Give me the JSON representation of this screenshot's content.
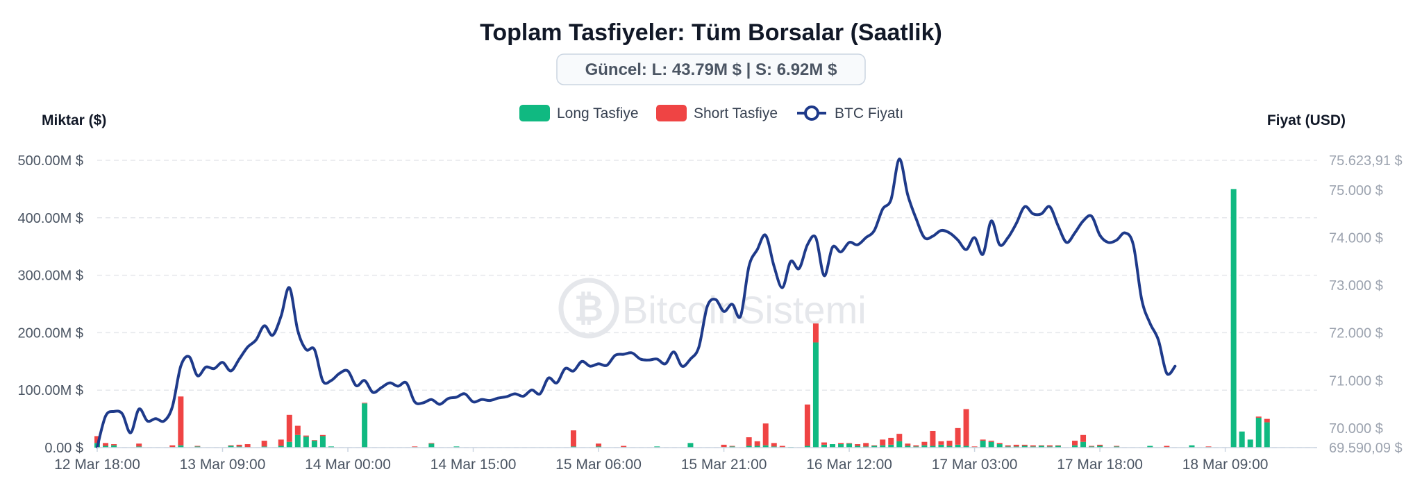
{
  "chart_data": {
    "type": "bar",
    "title": "Toplam Tasfiyeler: Tüm Borsalar (Saatlik)",
    "current_label": "Güncel: L: 43.79M $ | S: 6.92M $",
    "ylabel_left": "Miktar ($)",
    "ylabel_right": "Fiyat (USD)",
    "watermark": "BitcoinSistemi",
    "legend": [
      "Long Tasfiye",
      "Short Tasfiye",
      "BTC Fiyatı"
    ],
    "legend_position": "top-center",
    "grid": true,
    "colors": {
      "long": "#10b981",
      "short": "#ef4444",
      "price": "#1e3a8a"
    },
    "ylim_left": [
      0,
      500
    ],
    "ylim_right": [
      69590.09,
      75623.91
    ],
    "yticks_left": [
      "0.00 $",
      "100.00M $",
      "200.00M $",
      "300.00M $",
      "400.00M $",
      "500.00M $"
    ],
    "yticks_left_values": [
      0,
      100,
      200,
      300,
      400,
      500
    ],
    "yticks_right": [
      "69.590,09 $",
      "70.000 $",
      "71.000 $",
      "72.000 $",
      "73.000 $",
      "74.000 $",
      "75.000 $",
      "75.623,91 $"
    ],
    "yticks_right_values": [
      69590.09,
      70000,
      71000,
      72000,
      73000,
      74000,
      75000,
      75623.91
    ],
    "xlim_hours": [
      0,
      146
    ],
    "xticks": [
      "12 Mar 18:00",
      "13 Mar 09:00",
      "14 Mar 00:00",
      "14 Mar 15:00",
      "15 Mar 06:00",
      "15 Mar 21:00",
      "16 Mar 12:00",
      "17 Mar 03:00",
      "17 Mar 18:00",
      "18 Mar 09:00"
    ],
    "xticks_hours": [
      0,
      15,
      30,
      45,
      60,
      75,
      90,
      105,
      120,
      135
    ],
    "bars": [
      {
        "h": 0,
        "long": 8,
        "short": 12
      },
      {
        "h": 1,
        "long": 3,
        "short": 5
      },
      {
        "h": 2,
        "long": 4,
        "short": 2
      },
      {
        "h": 5,
        "long": 2,
        "short": 5
      },
      {
        "h": 9,
        "long": 1,
        "short": 3
      },
      {
        "h": 10,
        "long": 4,
        "short": 85
      },
      {
        "h": 12,
        "long": 2,
        "short": 1
      },
      {
        "h": 16,
        "long": 3,
        "short": 1
      },
      {
        "h": 17,
        "long": 2,
        "short": 3
      },
      {
        "h": 18,
        "long": 1,
        "short": 5
      },
      {
        "h": 20,
        "long": 2,
        "short": 10
      },
      {
        "h": 22,
        "long": 3,
        "short": 11
      },
      {
        "h": 23,
        "long": 10,
        "short": 47
      },
      {
        "h": 24,
        "long": 22,
        "short": 16
      },
      {
        "h": 25,
        "long": 19,
        "short": 2
      },
      {
        "h": 26,
        "long": 12,
        "short": 1
      },
      {
        "h": 27,
        "long": 20,
        "short": 2
      },
      {
        "h": 28,
        "long": 2,
        "short": 0
      },
      {
        "h": 32,
        "long": 77,
        "short": 1
      },
      {
        "h": 38,
        "long": 1,
        "short": 1
      },
      {
        "h": 40,
        "long": 7,
        "short": 1
      },
      {
        "h": 43,
        "long": 2,
        "short": 0
      },
      {
        "h": 57,
        "long": 2,
        "short": 28
      },
      {
        "h": 60,
        "long": 2,
        "short": 5
      },
      {
        "h": 63,
        "long": 1,
        "short": 2
      },
      {
        "h": 67,
        "long": 2,
        "short": 0
      },
      {
        "h": 71,
        "long": 8,
        "short": 0
      },
      {
        "h": 75,
        "long": 1,
        "short": 4
      },
      {
        "h": 76,
        "long": 2,
        "short": 1
      },
      {
        "h": 78,
        "long": 3,
        "short": 15
      },
      {
        "h": 79,
        "long": 3,
        "short": 8
      },
      {
        "h": 80,
        "long": 4,
        "short": 38
      },
      {
        "h": 81,
        "long": 2,
        "short": 6
      },
      {
        "h": 82,
        "long": 1,
        "short": 2
      },
      {
        "h": 83,
        "long": 1,
        "short": 0
      },
      {
        "h": 85,
        "long": 3,
        "short": 72
      },
      {
        "h": 86,
        "long": 183,
        "short": 33
      },
      {
        "h": 87,
        "long": 5,
        "short": 4
      },
      {
        "h": 88,
        "long": 6,
        "short": 0
      },
      {
        "h": 89,
        "long": 6,
        "short": 2
      },
      {
        "h": 90,
        "long": 7,
        "short": 1
      },
      {
        "h": 91,
        "long": 3,
        "short": 3
      },
      {
        "h": 92,
        "long": 2,
        "short": 6
      },
      {
        "h": 93,
        "long": 3,
        "short": 1
      },
      {
        "h": 94,
        "long": 4,
        "short": 10
      },
      {
        "h": 95,
        "long": 5,
        "short": 12
      },
      {
        "h": 96,
        "long": 11,
        "short": 13
      },
      {
        "h": 97,
        "long": 3,
        "short": 4
      },
      {
        "h": 98,
        "long": 2,
        "short": 2
      },
      {
        "h": 99,
        "long": 4,
        "short": 6
      },
      {
        "h": 100,
        "long": 3,
        "short": 26
      },
      {
        "h": 101,
        "long": 5,
        "short": 6
      },
      {
        "h": 102,
        "long": 3,
        "short": 9
      },
      {
        "h": 103,
        "long": 5,
        "short": 29
      },
      {
        "h": 104,
        "long": 3,
        "short": 64
      },
      {
        "h": 105,
        "long": 1,
        "short": 1
      },
      {
        "h": 106,
        "long": 12,
        "short": 2
      },
      {
        "h": 107,
        "long": 10,
        "short": 2
      },
      {
        "h": 108,
        "long": 6,
        "short": 2
      },
      {
        "h": 109,
        "long": 2,
        "short": 2
      },
      {
        "h": 110,
        "long": 2,
        "short": 3
      },
      {
        "h": 111,
        "long": 3,
        "short": 2
      },
      {
        "h": 112,
        "long": 2,
        "short": 2
      },
      {
        "h": 113,
        "long": 3,
        "short": 1
      },
      {
        "h": 114,
        "long": 2,
        "short": 2
      },
      {
        "h": 115,
        "long": 3,
        "short": 1
      },
      {
        "h": 117,
        "long": 4,
        "short": 8
      },
      {
        "h": 118,
        "long": 10,
        "short": 12
      },
      {
        "h": 119,
        "long": 2,
        "short": 1
      },
      {
        "h": 120,
        "long": 3,
        "short": 2
      },
      {
        "h": 122,
        "long": 2,
        "short": 1
      },
      {
        "h": 126,
        "long": 3,
        "short": 0
      },
      {
        "h": 128,
        "long": 1,
        "short": 2
      },
      {
        "h": 131,
        "long": 4,
        "short": 0
      },
      {
        "h": 133,
        "long": 1,
        "short": 1
      },
      {
        "h": 136,
        "long": 450,
        "short": 0
      },
      {
        "h": 137,
        "long": 28,
        "short": 0
      },
      {
        "h": 138,
        "long": 14,
        "short": 0
      },
      {
        "h": 139,
        "long": 52,
        "short": 2
      },
      {
        "h": 140,
        "long": 44,
        "short": 6
      }
    ],
    "price": [
      [
        0,
        69600
      ],
      [
        1,
        70250
      ],
      [
        2,
        70350
      ],
      [
        3,
        70300
      ],
      [
        4,
        69900
      ],
      [
        5,
        70400
      ],
      [
        6,
        70150
      ],
      [
        7,
        70200
      ],
      [
        8,
        70150
      ],
      [
        9,
        70450
      ],
      [
        10,
        71300
      ],
      [
        11,
        71500
      ],
      [
        12,
        71100
      ],
      [
        13,
        71280
      ],
      [
        14,
        71250
      ],
      [
        15,
        71380
      ],
      [
        16,
        71200
      ],
      [
        17,
        71450
      ],
      [
        18,
        71700
      ],
      [
        19,
        71850
      ],
      [
        20,
        72150
      ],
      [
        21,
        71950
      ],
      [
        22,
        72350
      ],
      [
        23,
        72950
      ],
      [
        24,
        72050
      ],
      [
        25,
        71650
      ],
      [
        26,
        71650
      ],
      [
        27,
        70990
      ],
      [
        28,
        71000
      ],
      [
        29,
        71150
      ],
      [
        30,
        71200
      ],
      [
        31,
        70890
      ],
      [
        32,
        71000
      ],
      [
        33,
        70750
      ],
      [
        34,
        70850
      ],
      [
        35,
        70950
      ],
      [
        36,
        70880
      ],
      [
        37,
        70950
      ],
      [
        38,
        70550
      ],
      [
        39,
        70530
      ],
      [
        40,
        70600
      ],
      [
        41,
        70500
      ],
      [
        42,
        70620
      ],
      [
        43,
        70650
      ],
      [
        44,
        70720
      ],
      [
        45,
        70550
      ],
      [
        46,
        70600
      ],
      [
        47,
        70580
      ],
      [
        48,
        70630
      ],
      [
        49,
        70660
      ],
      [
        50,
        70720
      ],
      [
        51,
        70670
      ],
      [
        52,
        70800
      ],
      [
        53,
        70720
      ],
      [
        54,
        71050
      ],
      [
        55,
        70950
      ],
      [
        56,
        71250
      ],
      [
        57,
        71200
      ],
      [
        58,
        71400
      ],
      [
        59,
        71300
      ],
      [
        60,
        71350
      ],
      [
        61,
        71320
      ],
      [
        62,
        71530
      ],
      [
        63,
        71550
      ],
      [
        64,
        71580
      ],
      [
        65,
        71450
      ],
      [
        66,
        71430
      ],
      [
        67,
        71450
      ],
      [
        68,
        71350
      ],
      [
        69,
        71600
      ],
      [
        70,
        71300
      ],
      [
        71,
        71450
      ],
      [
        72,
        71700
      ],
      [
        73,
        72550
      ],
      [
        74,
        72700
      ],
      [
        75,
        72450
      ],
      [
        76,
        72600
      ],
      [
        77,
        72350
      ],
      [
        78,
        73400
      ],
      [
        79,
        73750
      ],
      [
        80,
        74050
      ],
      [
        81,
        73400
      ],
      [
        82,
        72950
      ],
      [
        83,
        73500
      ],
      [
        84,
        73350
      ],
      [
        85,
        73850
      ],
      [
        86,
        74000
      ],
      [
        87,
        73200
      ],
      [
        88,
        73800
      ],
      [
        89,
        73700
      ],
      [
        90,
        73900
      ],
      [
        91,
        73850
      ],
      [
        92,
        74000
      ],
      [
        93,
        74150
      ],
      [
        94,
        74600
      ],
      [
        95,
        74800
      ],
      [
        96,
        75650
      ],
      [
        97,
        74900
      ],
      [
        98,
        74400
      ],
      [
        99,
        74000
      ],
      [
        100,
        74030
      ],
      [
        101,
        74150
      ],
      [
        102,
        74100
      ],
      [
        103,
        73950
      ],
      [
        104,
        73750
      ],
      [
        105,
        74000
      ],
      [
        106,
        73650
      ],
      [
        107,
        74350
      ],
      [
        108,
        73850
      ],
      [
        109,
        74000
      ],
      [
        110,
        74300
      ],
      [
        111,
        74650
      ],
      [
        112,
        74500
      ],
      [
        113,
        74500
      ],
      [
        114,
        74650
      ],
      [
        115,
        74250
      ],
      [
        116,
        73900
      ],
      [
        117,
        74100
      ],
      [
        118,
        74350
      ],
      [
        119,
        74450
      ],
      [
        120,
        74050
      ],
      [
        121,
        73900
      ],
      [
        122,
        73950
      ],
      [
        123,
        74100
      ],
      [
        124,
        73850
      ],
      [
        125,
        72700
      ],
      [
        126,
        72200
      ],
      [
        127,
        71850
      ],
      [
        128,
        71150
      ],
      [
        129,
        71300
      ]
    ]
  }
}
